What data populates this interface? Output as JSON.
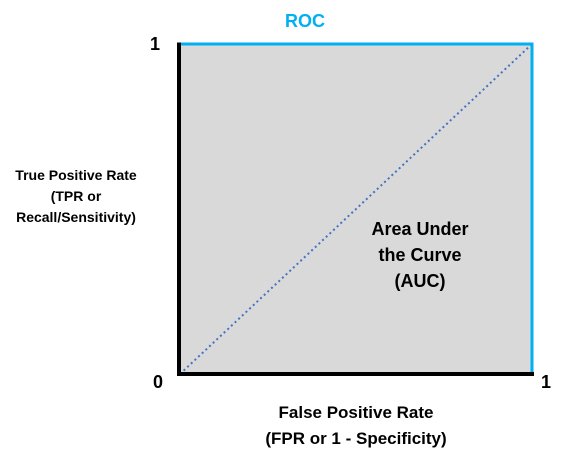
{
  "title": "ROC",
  "axes": {
    "y_max_label": "1",
    "origin_label": "0",
    "x_max_label": "1",
    "y_label_lines": [
      "True Positive Rate",
      "(TPR or",
      "Recall/Sensitivity)"
    ],
    "x_label_lines": [
      "False Positive Rate",
      "(FPR or 1 - Specificity)"
    ]
  },
  "area_label_lines": [
    "Area Under",
    "the Curve",
    "(AUC)"
  ],
  "colors": {
    "title": "#00b0f0",
    "frame_top_right": "#00b0f0",
    "frame_left_bottom": "#000000",
    "area_fill": "#d9d9d9",
    "diagonal": "#4472c4"
  }
}
